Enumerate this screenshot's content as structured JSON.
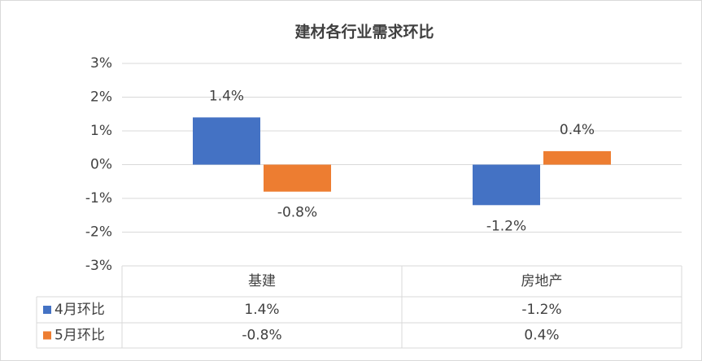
{
  "chart_data": {
    "type": "bar",
    "title": "建材各行业需求环比",
    "categories": [
      "基建",
      "房地产"
    ],
    "series": [
      {
        "name": "4月环比",
        "color": "#4472c4",
        "values": [
          1.4,
          -1.2
        ],
        "value_labels": [
          "1.4%",
          "-1.2%"
        ]
      },
      {
        "name": "5月环比",
        "color": "#ed7d31",
        "values": [
          -0.8,
          0.4
        ],
        "value_labels": [
          "-0.8%",
          "0.4%"
        ]
      }
    ],
    "ylim": [
      -3,
      3
    ],
    "yticks": [
      {
        "value": -3,
        "label": "-3%"
      },
      {
        "value": -2,
        "label": "-2%"
      },
      {
        "value": -1,
        "label": "-1%"
      },
      {
        "value": 0,
        "label": "0%"
      },
      {
        "value": 1,
        "label": "1%"
      },
      {
        "value": 2,
        "label": "2%"
      },
      {
        "value": 3,
        "label": "3%"
      }
    ],
    "grid": true,
    "data_table": true
  }
}
